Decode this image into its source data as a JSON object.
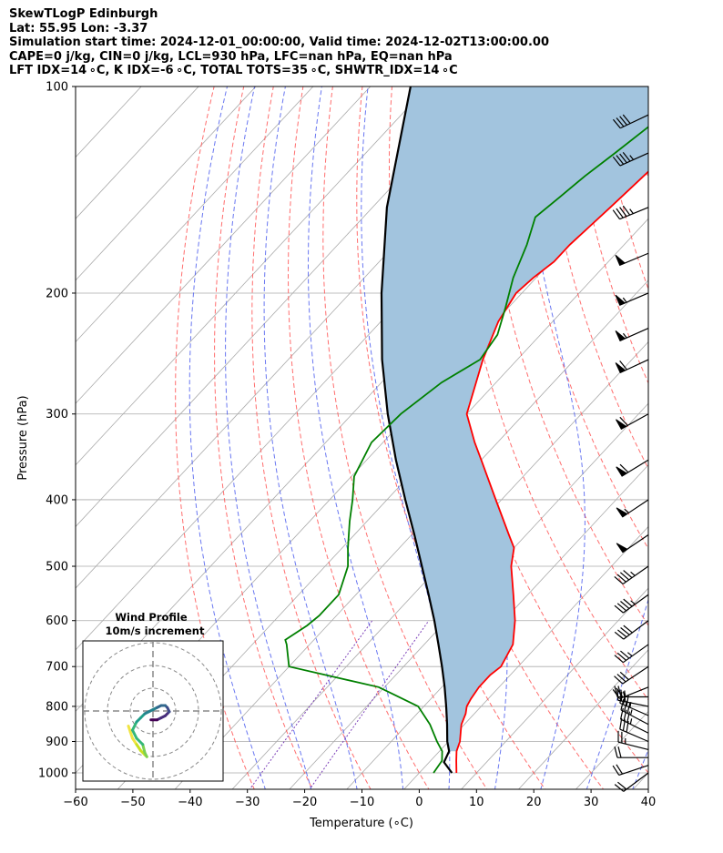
{
  "header": {
    "line1": "SkewTLogP Edinburgh",
    "line2": "Lat: 55.95   Lon: -3.37",
    "line3": "Simulation start time: 2024-12-01_00:00:00, Valid time: 2024-12-02T13:00:00.00",
    "line4": "CAPE=0 j/kg, CIN=0 j/kg, LCL=930 hPa, LFC=nan hPa, EQ=nan hPa",
    "line5": "LFT IDX=14 ∘C, K IDX=-6 ∘C, TOTAL TOTS=35 ∘C, SHWTR_IDX=14 ∘C"
  },
  "colors": {
    "temperature": "#ff0000",
    "dewpoint": "#008000",
    "parcel": "#000000",
    "cape_fill": "#a2c4de",
    "dry_adiabat": "#ff5555",
    "moist_adiabat": "#4455ee",
    "isotherm": "#aaaaaa",
    "mixing_ratio": "#7b3fb8"
  },
  "chart_data": {
    "type": "skewt",
    "xlabel": "Temperature (∘C)",
    "ylabel": "Pressure (hPa)",
    "xlim": [
      -60,
      40
    ],
    "ylim": [
      1050,
      100
    ],
    "x_ticks": [
      "−60",
      "−50",
      "−40",
      "−30",
      "−20",
      "−10",
      "0",
      "10",
      "20",
      "30",
      "40"
    ],
    "y_ticks": [
      "100",
      "200",
      "300",
      "400",
      "500",
      "600",
      "700",
      "800",
      "900",
      "1000"
    ],
    "y_tick_values": [
      100,
      200,
      300,
      400,
      500,
      600,
      700,
      800,
      900,
      1000
    ],
    "temperature": {
      "p": [
        1000,
        960,
        930,
        900,
        870,
        850,
        820,
        800,
        780,
        750,
        720,
        700,
        650,
        600,
        550,
        500,
        470,
        450,
        400,
        350,
        330,
        300,
        250,
        220,
        200,
        190,
        180,
        170,
        160,
        150,
        140,
        130,
        120,
        110,
        100
      ],
      "t": [
        6.5,
        4.5,
        3.0,
        2.0,
        0.5,
        -0.5,
        -1.5,
        -2.5,
        -3.0,
        -3.5,
        -3.5,
        -3.0,
        -4.5,
        -8.0,
        -12.5,
        -17.5,
        -20.0,
        -23.0,
        -31.0,
        -40.0,
        -44.0,
        -50.0,
        -56.0,
        -59.5,
        -61.0,
        -60.5,
        -59.5,
        -59.5,
        -59.0,
        -58.5,
        -58.0,
        -57.5,
        -57.0,
        -56.5,
        -56.0
      ]
    },
    "dewpoint": {
      "p": [
        1000,
        960,
        930,
        900,
        850,
        800,
        750,
        700,
        650,
        640,
        610,
        590,
        550,
        500,
        470,
        430,
        400,
        370,
        330,
        300,
        270,
        250,
        230,
        210,
        190,
        170,
        155,
        145,
        135,
        125,
        115,
        105,
        100
      ],
      "td": [
        2.5,
        2.0,
        0.5,
        -2.0,
        -6.0,
        -11.0,
        -21.0,
        -40.0,
        -44.0,
        -45.0,
        -43.5,
        -43.0,
        -43.0,
        -46.0,
        -49.0,
        -53.0,
        -56.0,
        -59.5,
        -62.0,
        -61.5,
        -59.5,
        -56.5,
        -57.5,
        -60.5,
        -64.0,
        -67.0,
        -70.0,
        -69.0,
        -68.0,
        -66.5,
        -65.0,
        -63.0,
        -62.0
      ]
    },
    "parcel": {
      "p": [
        1000,
        965,
        930,
        900,
        850,
        800,
        750,
        700,
        650,
        600,
        550,
        500,
        450,
        400,
        350,
        300,
        250,
        200,
        150,
        100
      ],
      "t": [
        5.7,
        2.6,
        1.7,
        -0.2,
        -3.0,
        -6.1,
        -9.5,
        -13.3,
        -17.5,
        -22.1,
        -27.3,
        -33.1,
        -39.5,
        -46.8,
        -54.9,
        -63.8,
        -73.6,
        -84.5,
        -97.5,
        -113.0
      ]
    },
    "wind_barbs": {
      "p": [
        1000,
        975,
        950,
        925,
        900,
        875,
        850,
        825,
        800,
        775,
        750,
        700,
        650,
        600,
        550,
        500,
        450,
        400,
        350,
        300,
        250,
        225,
        200,
        175,
        150,
        125,
        110
      ],
      "u": [
        8,
        9,
        10,
        12,
        14,
        16,
        17,
        16,
        15,
        12,
        10,
        12,
        14,
        16,
        18,
        20,
        22,
        24,
        26,
        27,
        28,
        27,
        26,
        24,
        22,
        20,
        19
      ],
      "v": [
        6,
        3,
        0,
        -3,
        -6,
        -8,
        -9,
        -7,
        -3,
        0,
        4,
        8,
        10,
        12,
        13,
        14,
        15,
        16,
        16,
        15,
        13,
        12,
        11,
        10,
        9,
        9,
        9
      ]
    },
    "hodograph": {
      "title": "Wind Profile",
      "subtitle": "10m/s increment",
      "ring_step_ms": 10,
      "rings": 3
    }
  }
}
